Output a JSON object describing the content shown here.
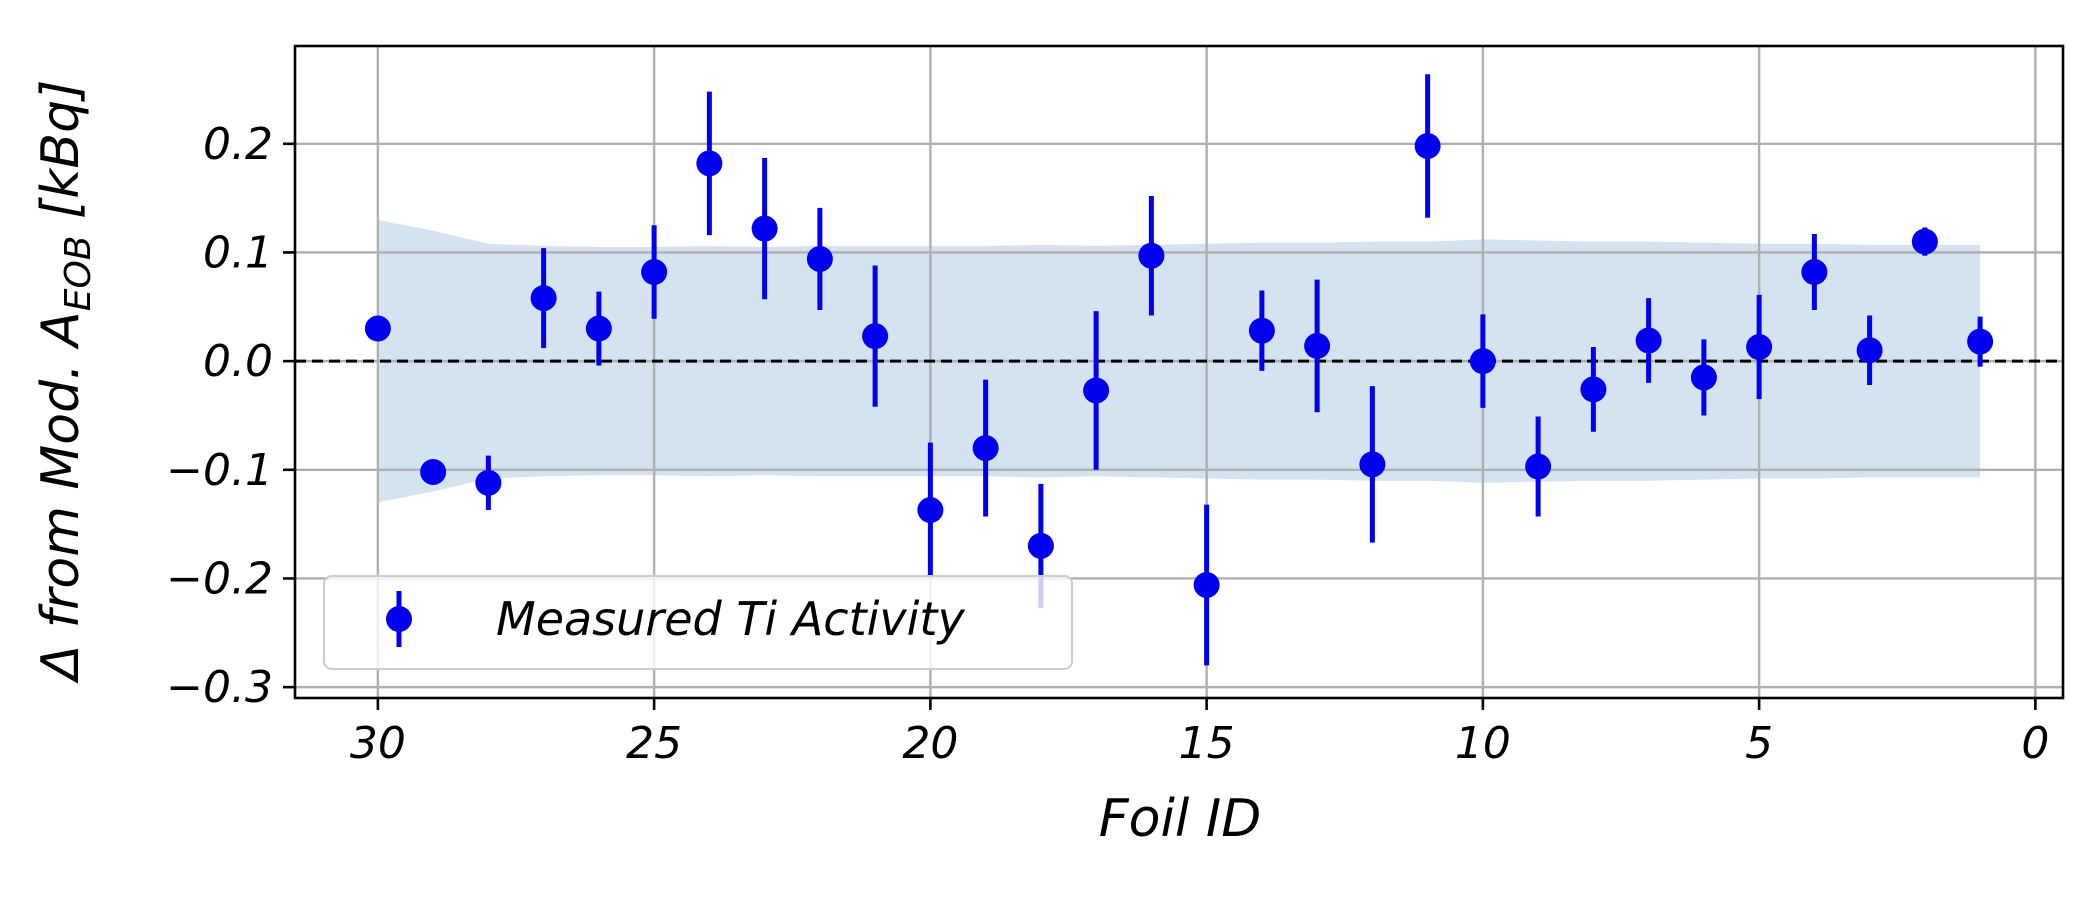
{
  "chart_data": {
    "type": "scatter",
    "xlabel": "Foil ID",
    "ylabel_parts": {
      "main": "Δ from Mod. A",
      "subscript": "EOB",
      "unit": " [kBq]"
    },
    "xlim": [
      31.5,
      -0.5
    ],
    "ylim": [
      -0.31,
      0.29
    ],
    "xticks": [
      30,
      25,
      20,
      15,
      10,
      5,
      0
    ],
    "xtick_labels": [
      "30",
      "25",
      "20",
      "15",
      "10",
      "5",
      "0"
    ],
    "yticks": [
      0.2,
      0.1,
      0.0,
      -0.1,
      -0.2,
      -0.3
    ],
    "ytick_labels": [
      "0.2",
      "0.1",
      "0.0",
      "−0.1",
      "−0.2",
      "−0.3"
    ],
    "grid": true,
    "reference_line": {
      "y": 0,
      "style": "dashed",
      "color": "#000000"
    },
    "band": {
      "color": "#d4e3ef",
      "x": [
        30,
        29,
        28,
        27,
        26,
        25,
        24,
        23,
        22,
        21,
        20,
        19,
        18,
        17,
        16,
        15,
        14,
        13,
        12,
        11,
        10,
        9,
        8,
        7,
        6,
        5,
        4,
        3,
        2,
        1
      ],
      "upper": [
        0.13,
        0.12,
        0.108,
        0.106,
        0.105,
        0.105,
        0.106,
        0.105,
        0.106,
        0.106,
        0.106,
        0.106,
        0.107,
        0.106,
        0.107,
        0.108,
        0.109,
        0.109,
        0.11,
        0.11,
        0.112,
        0.111,
        0.11,
        0.11,
        0.109,
        0.108,
        0.108,
        0.107,
        0.107,
        0.107
      ],
      "lower": [
        -0.13,
        -0.12,
        -0.108,
        -0.106,
        -0.105,
        -0.105,
        -0.106,
        -0.105,
        -0.106,
        -0.106,
        -0.106,
        -0.106,
        -0.107,
        -0.106,
        -0.107,
        -0.108,
        -0.109,
        -0.109,
        -0.11,
        -0.11,
        -0.112,
        -0.111,
        -0.11,
        -0.11,
        -0.109,
        -0.108,
        -0.108,
        -0.107,
        -0.107,
        -0.107
      ]
    },
    "series": [
      {
        "name": "Measured Ti Activity",
        "color": "#0000ee",
        "points": [
          {
            "x": 30,
            "y": 0.03,
            "err": 0.0
          },
          {
            "x": 29,
            "y": -0.102,
            "err": 0.0
          },
          {
            "x": 28,
            "y": -0.112,
            "err": 0.025
          },
          {
            "x": 27,
            "y": 0.058,
            "err": 0.046
          },
          {
            "x": 26,
            "y": 0.03,
            "err": 0.034
          },
          {
            "x": 25,
            "y": 0.082,
            "err": 0.043
          },
          {
            "x": 24,
            "y": 0.182,
            "err": 0.066
          },
          {
            "x": 23,
            "y": 0.122,
            "err": 0.065
          },
          {
            "x": 22,
            "y": 0.094,
            "err": 0.047
          },
          {
            "x": 21,
            "y": 0.023,
            "err": 0.065
          },
          {
            "x": 20,
            "y": -0.137,
            "err": 0.062
          },
          {
            "x": 19,
            "y": -0.08,
            "err": 0.063
          },
          {
            "x": 18,
            "y": -0.17,
            "err": 0.057
          },
          {
            "x": 17,
            "y": -0.027,
            "err": 0.073
          },
          {
            "x": 16,
            "y": 0.097,
            "err": 0.055
          },
          {
            "x": 15,
            "y": -0.206,
            "err": 0.074
          },
          {
            "x": 14,
            "y": 0.028,
            "err": 0.037
          },
          {
            "x": 13,
            "y": 0.014,
            "err": 0.061
          },
          {
            "x": 12,
            "y": -0.095,
            "err": 0.072
          },
          {
            "x": 11,
            "y": 0.198,
            "err": 0.066
          },
          {
            "x": 10,
            "y": 0.0,
            "err": 0.043
          },
          {
            "x": 9,
            "y": -0.097,
            "err": 0.046
          },
          {
            "x": 8,
            "y": -0.026,
            "err": 0.039
          },
          {
            "x": 7,
            "y": 0.019,
            "err": 0.039
          },
          {
            "x": 6,
            "y": -0.015,
            "err": 0.035
          },
          {
            "x": 5,
            "y": 0.013,
            "err": 0.048
          },
          {
            "x": 4,
            "y": 0.082,
            "err": 0.035
          },
          {
            "x": 3,
            "y": 0.01,
            "err": 0.032
          },
          {
            "x": 2,
            "y": 0.11,
            "err": 0.013
          },
          {
            "x": 1,
            "y": 0.018,
            "err": 0.023
          }
        ]
      }
    ],
    "legend": {
      "placement": "lower-left",
      "entries": [
        "Measured Ti Activity"
      ]
    }
  }
}
